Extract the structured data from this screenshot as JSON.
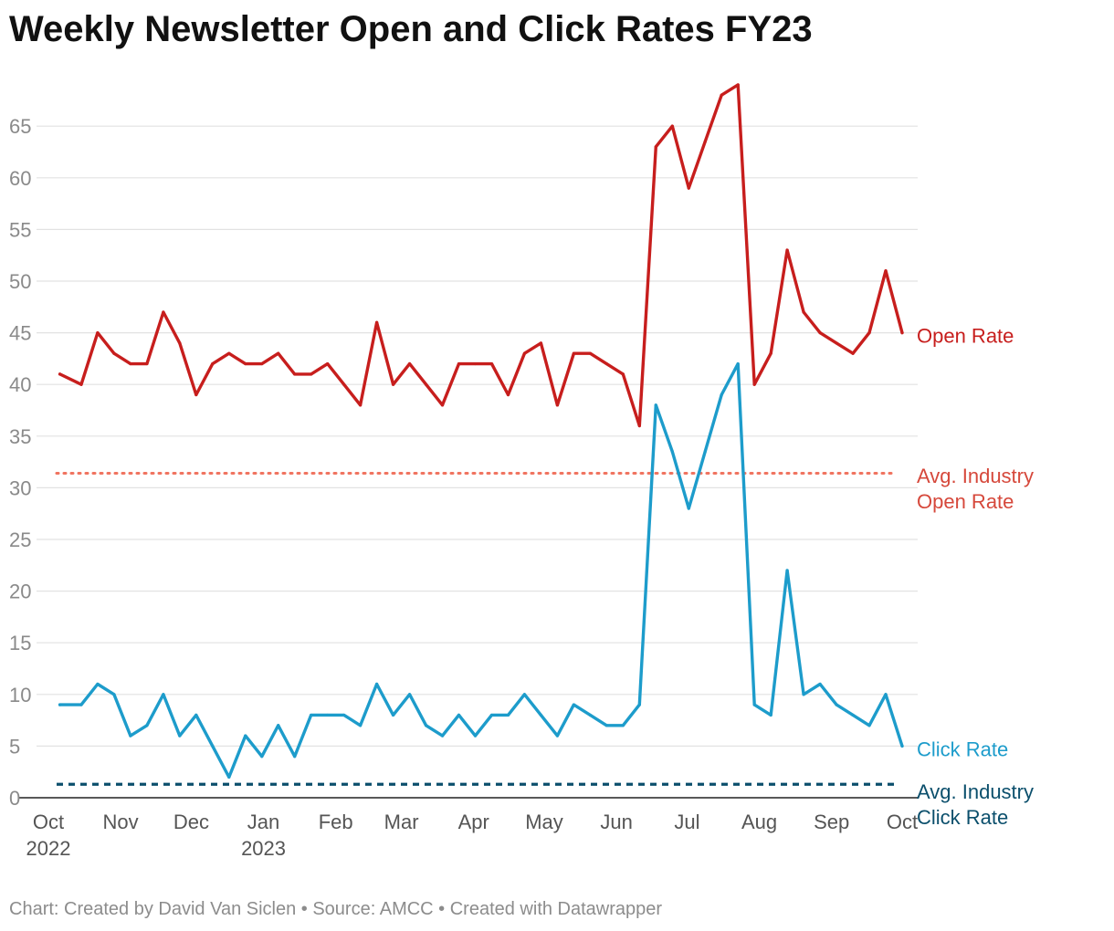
{
  "chart_data": {
    "type": "line",
    "title": "Weekly Newsletter Open and Click Rates FY23",
    "footer": "Chart: Created by David Van Siclen • Source: AMCC • Created with Datawrapper",
    "ylim": [
      0,
      69
    ],
    "yticks": [
      0,
      5,
      10,
      15,
      20,
      25,
      30,
      35,
      40,
      45,
      50,
      55,
      60,
      65
    ],
    "xlim": [
      0,
      52
    ],
    "x_ticks": [
      {
        "week": 0,
        "label": "Oct",
        "sub": "2022"
      },
      {
        "week": 4.4,
        "label": "Nov",
        "sub": ""
      },
      {
        "week": 8.7,
        "label": "Dec",
        "sub": ""
      },
      {
        "week": 13.1,
        "label": "Jan",
        "sub": "2023"
      },
      {
        "week": 17.5,
        "label": "Feb",
        "sub": ""
      },
      {
        "week": 21.5,
        "label": "Mar",
        "sub": ""
      },
      {
        "week": 25.9,
        "label": "Apr",
        "sub": ""
      },
      {
        "week": 30.2,
        "label": "May",
        "sub": ""
      },
      {
        "week": 34.6,
        "label": "Jun",
        "sub": ""
      },
      {
        "week": 38.9,
        "label": "Jul",
        "sub": ""
      },
      {
        "week": 43.3,
        "label": "Aug",
        "sub": ""
      },
      {
        "week": 47.7,
        "label": "Sep",
        "sub": ""
      },
      {
        "week": 52,
        "label": "Oct",
        "sub": ""
      }
    ],
    "series": [
      {
        "name": "Open Rate",
        "color": "#c71e1d",
        "x": [
          0.7,
          2.0,
          3.0,
          4.0,
          5.0,
          6.0,
          7.0,
          8.0,
          9.0,
          10.0,
          11.0,
          12.0,
          13.0,
          14.0,
          15.0,
          16.0,
          17.0,
          18.0,
          19.0,
          20.0,
          21.0,
          22.0,
          23.0,
          24.0,
          25.0,
          26.0,
          27.0,
          28.0,
          29.0,
          30.0,
          31.0,
          32.0,
          33.0,
          34.0,
          35.0,
          36.0,
          37.0,
          38.0,
          39.0,
          40.0,
          41.0,
          42.0,
          43.0,
          44.0,
          45.0,
          46.0,
          47.0,
          48.0,
          49.0,
          50.0,
          51.0,
          52.0
        ],
        "values": [
          41,
          40,
          45,
          43,
          42,
          42,
          47,
          44,
          39,
          42,
          43,
          42,
          42,
          43,
          41,
          41,
          42,
          40,
          38,
          46,
          40,
          42,
          40,
          38,
          42,
          42,
          42,
          39,
          43,
          44,
          38,
          43,
          43,
          42,
          41,
          36,
          63,
          65,
          59,
          63.5,
          68,
          69,
          40,
          43,
          53,
          47,
          45,
          44,
          43,
          45,
          51,
          45
        ]
      },
      {
        "name": "Click Rate",
        "color": "#1d9ccb",
        "x": [
          0.7,
          2.0,
          3.0,
          4.0,
          5.0,
          6.0,
          7.0,
          8.0,
          9.0,
          10.0,
          11.0,
          12.0,
          13.0,
          14.0,
          15.0,
          16.0,
          17.0,
          18.0,
          19.0,
          20.0,
          21.0,
          22.0,
          23.0,
          24.0,
          25.0,
          26.0,
          27.0,
          28.0,
          29.0,
          30.0,
          31.0,
          32.0,
          33.0,
          34.0,
          35.0,
          36.0,
          37.0,
          38.0,
          39.0,
          40.0,
          41.0,
          42.0,
          43.0,
          44.0,
          45.0,
          46.0,
          47.0,
          48.0,
          49.0,
          50.0,
          51.0,
          52.0
        ],
        "values": [
          9,
          9,
          11,
          10,
          6,
          7,
          10,
          6,
          8,
          5,
          2,
          6,
          4,
          7,
          4,
          8,
          8,
          8,
          7,
          11,
          8,
          10,
          7,
          6,
          8,
          6,
          8,
          8,
          10,
          8,
          6,
          9,
          8,
          7,
          7,
          9,
          38,
          33.5,
          28,
          33.5,
          39,
          42,
          9,
          8,
          22,
          10,
          11,
          9,
          8,
          7,
          10,
          5
        ]
      }
    ],
    "reference_lines": [
      {
        "name": "Avg. Industry Open Rate",
        "label_line1": "Avg. Industry",
        "label_line2": "Open Rate",
        "value": 31.4,
        "color": "#f0735f",
        "label_color": "#d6483b",
        "style": "dotted"
      },
      {
        "name": "Avg. Industry Click Rate",
        "label_line1": "Avg. Industry",
        "label_line2": "Click Rate",
        "value": 1.3,
        "color": "#0b4f6c",
        "label_color": "#0b4f6c",
        "style": "dashed"
      }
    ]
  }
}
